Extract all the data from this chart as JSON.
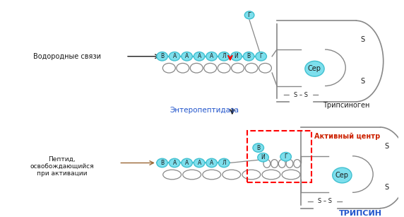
{
  "bg_color": "#ffffff",
  "fig_width": 5.72,
  "fig_height": 3.07,
  "dpi": 100,
  "top_chain_letters": [
    "В",
    "А",
    "А",
    "А",
    "А",
    "Л",
    "И",
    "В",
    "Г"
  ],
  "bottom_chain_letters": [
    "В",
    "А",
    "А",
    "А",
    "А",
    "Л"
  ],
  "cyan_color": "#40C0D0",
  "cyan_fill": "#7DDFED",
  "text_color_dark": "#1a1a1a",
  "text_color_blue": "#2255CC",
  "text_color_red": "#CC2200",
  "arrow_color": "#996633",
  "label_vodorodnye": "Водородные связи",
  "label_entero": "Энтеропептидаза",
  "label_tripsinogen": "Трипсиноген",
  "label_peptid": "Пептид,\nосвобождающийся\nпри активации",
  "label_aktivny": "Активный центр",
  "label_tripsin": "ТРИПСИН",
  "label_ser": "Сер",
  "label_g": "Г",
  "label_v": "В",
  "label_i": "И",
  "label_g2": "Г",
  "label_ss": "S – S",
  "label_s1": "S",
  "label_s2": "S"
}
